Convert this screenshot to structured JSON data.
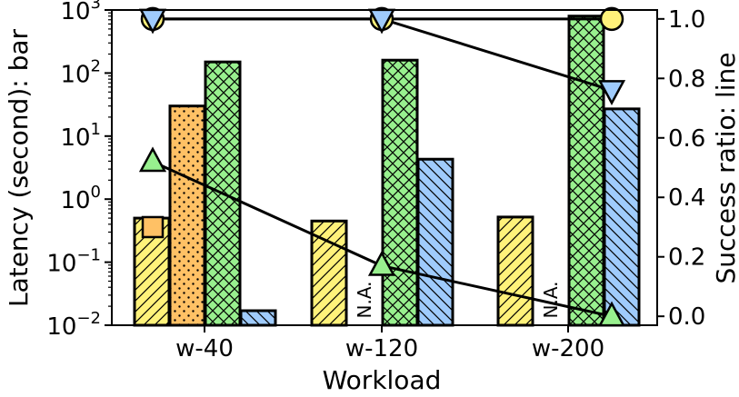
{
  "chart_data": {
    "type": "bar",
    "xlabel": "Workload",
    "ylabel_left": "Latency (second): bar",
    "ylabel_right": "Success ratio: line",
    "categories": [
      "w-40",
      "w-120",
      "w-200"
    ],
    "left_axis": {
      "scale": "log",
      "ylim": [
        0.01,
        1000
      ],
      "ticks": [
        {
          "value": 0.01,
          "base": "10",
          "exp": "−2"
        },
        {
          "value": 0.1,
          "base": "10",
          "exp": "−1"
        },
        {
          "value": 1,
          "base": "10",
          "exp": "0"
        },
        {
          "value": 10,
          "base": "10",
          "exp": "1"
        },
        {
          "value": 100,
          "base": "10",
          "exp": "2"
        },
        {
          "value": 1000,
          "base": "10",
          "exp": "3"
        }
      ]
    },
    "right_axis": {
      "ylim": [
        -0.03,
        1.03
      ],
      "ticks": [
        "0.0",
        "0.2",
        "0.4",
        "0.6",
        "0.8",
        "1.0"
      ]
    },
    "bar_series": [
      {
        "color": "#fff27a",
        "hatch": "diag-fwd",
        "values": [
          0.5,
          0.45,
          0.52
        ]
      },
      {
        "color": "#ffc165",
        "hatch": "dots",
        "values": [
          30,
          null,
          null
        ]
      },
      {
        "color": "#98f08e",
        "hatch": "cross",
        "values": [
          150,
          160,
          800
        ]
      },
      {
        "color": "#9fcbfc",
        "hatch": "diag-back",
        "values": [
          0.017,
          4.3,
          27
        ]
      }
    ],
    "na_text": "N.A.",
    "line_series": [
      {
        "marker": "square",
        "color": "#ffc165",
        "values": [
          0.3,
          null,
          null
        ]
      },
      {
        "marker": "circle",
        "color": "#fff27a",
        "values": [
          1.0,
          1.0,
          1.0
        ]
      },
      {
        "marker": "triangle-down",
        "color": "#9fcbfc",
        "values": [
          1.0,
          1.0,
          0.76
        ]
      },
      {
        "marker": "triangle-up",
        "color": "#98f08e",
        "values": [
          0.52,
          0.17,
          0.0
        ]
      }
    ]
  }
}
